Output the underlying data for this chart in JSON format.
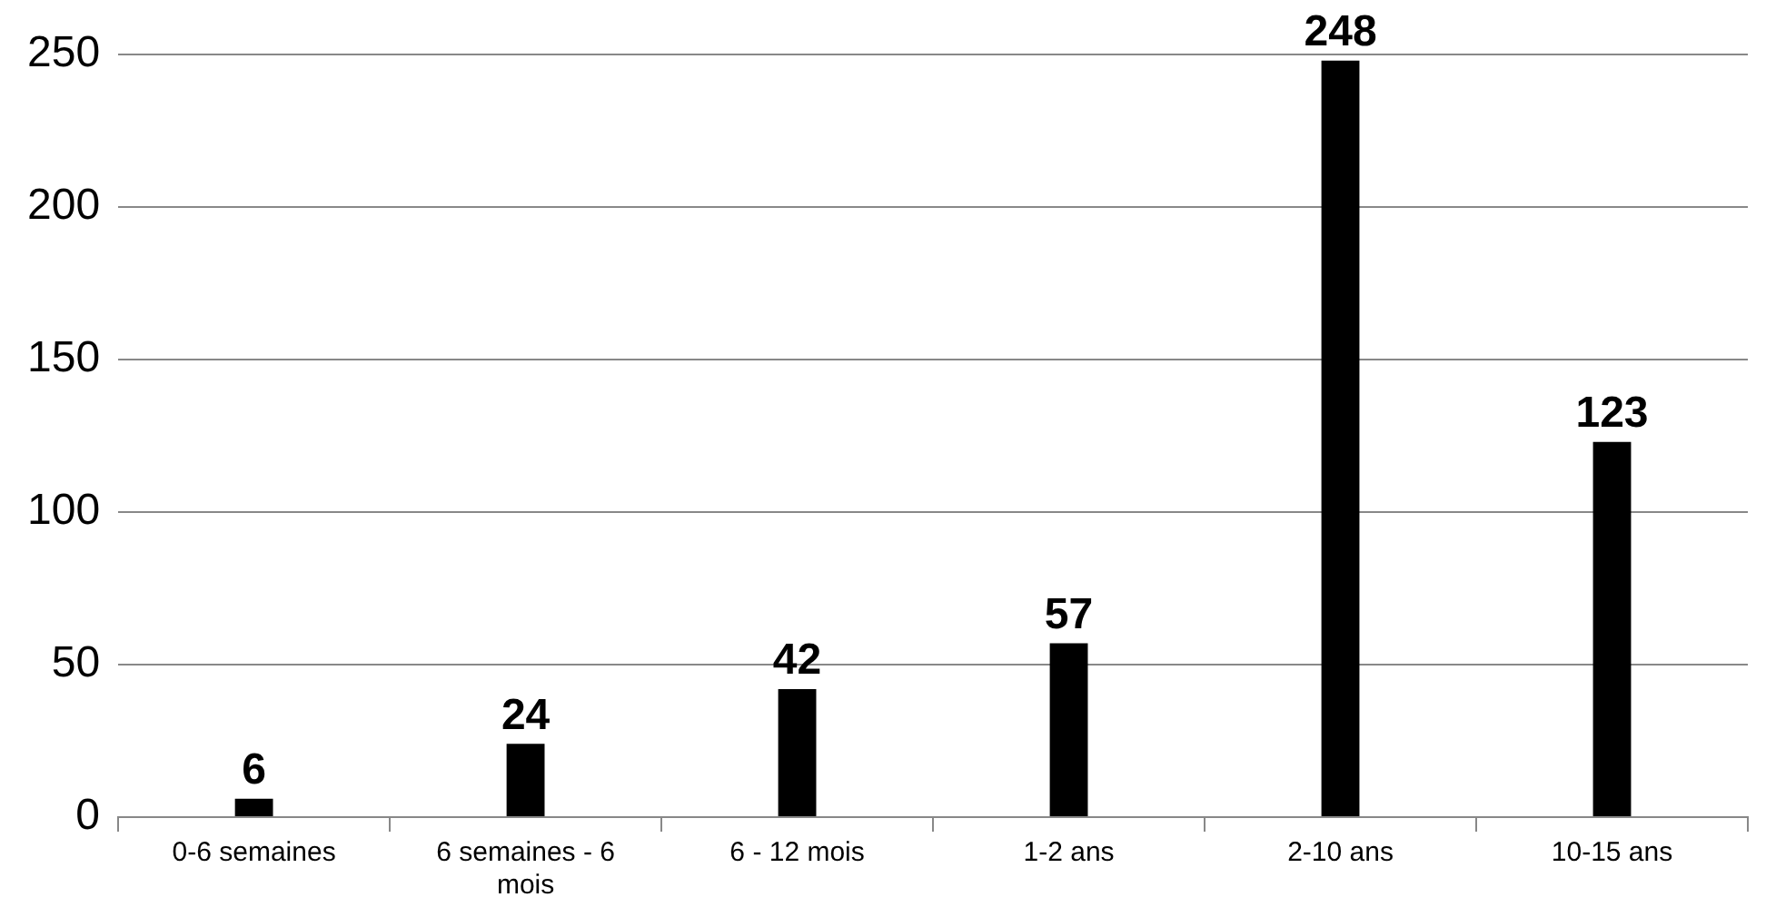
{
  "chart_data": {
    "type": "bar",
    "categories": [
      "0-6 semaines",
      "6 semaines - 6 mois",
      "6 - 12 mois",
      "1-2 ans",
      "2-10 ans",
      "10-15 ans"
    ],
    "values": [
      6,
      24,
      42,
      57,
      248,
      123
    ],
    "color": "#000000",
    "ylim": [
      0,
      250
    ],
    "yticks": [
      0,
      50,
      100,
      150,
      200,
      250
    ],
    "grid": "y",
    "data_labels": true,
    "legend": false
  }
}
